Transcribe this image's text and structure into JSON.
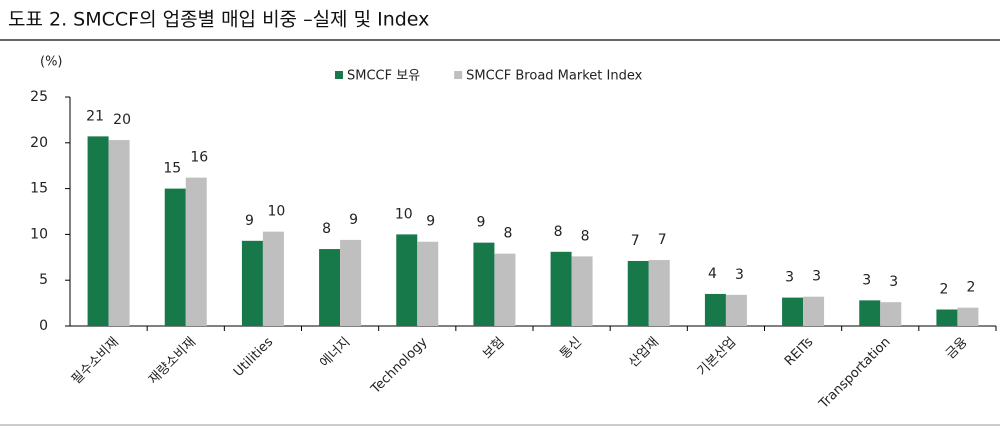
{
  "chart_data": {
    "type": "bar",
    "title": "도표 2. SMCCF의 업종별 매입 비중 –실제 및 Index",
    "unit": "(%)",
    "categories": [
      "필수소비재",
      "재량소비재",
      "Utilities",
      "에너지",
      "Technology",
      "보험",
      "통신",
      "산업재",
      "기본산업",
      "REITs",
      "Transportation",
      "금융"
    ],
    "series": [
      {
        "name": "SMCCF 보유",
        "color": "#17784a",
        "values": [
          20.7,
          15.0,
          9.3,
          8.4,
          10.0,
          9.1,
          8.1,
          7.1,
          3.5,
          3.1,
          2.8,
          1.8
        ],
        "value_labels": [
          "21",
          "15",
          "9",
          "8",
          "10",
          "9",
          "8",
          "7",
          "4",
          "3",
          "3",
          "2"
        ]
      },
      {
        "name": "SMCCF Broad Market Index",
        "color": "#bfbfbf",
        "values": [
          20.3,
          16.2,
          10.3,
          9.4,
          9.2,
          7.9,
          7.6,
          7.2,
          3.4,
          3.2,
          2.6,
          2.0
        ],
        "value_labels": [
          "20",
          "16",
          "10",
          "9",
          "9",
          "8",
          "8",
          "7",
          "3",
          "3",
          "3",
          "2"
        ]
      }
    ],
    "ylim": [
      0,
      25
    ],
    "yticks": [
      0,
      5,
      10,
      15,
      20,
      25
    ],
    "legend": "top"
  }
}
